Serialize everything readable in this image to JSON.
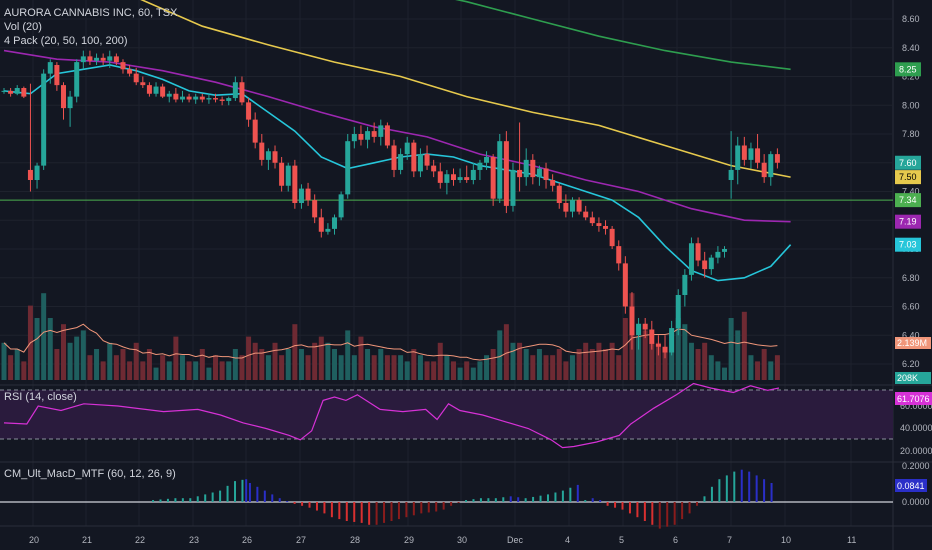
{
  "main_legend": {
    "title": "AURORA CANNABIS INC, 60, TSX",
    "volume": "Vol (20)",
    "ma_pack": "4 Pack (20, 50, 100, 200)"
  },
  "rsi_legend": "RSI (14, close)",
  "macd_legend": "CM_Ult_MacD_MTF (60, 12, 26, 9)",
  "colors": {
    "background": "#131722",
    "up": "#26a69a",
    "down": "#ef5350",
    "ma20": "#26c6da",
    "ma50": "#9c27b0",
    "ma100": "#e6c94d",
    "ma200": "#2e9e4f",
    "hline": "#4caf50",
    "rsi": "#d631d6",
    "macd_up_strong": "#26a69a",
    "macd_up_weak": "#2a2fc8",
    "macd_down_strong": "#d93030",
    "macd_down_weak": "#8a1c1c"
  },
  "price_axis": {
    "ticks": [
      "8.60",
      "8.40",
      "8.20",
      "8.00",
      "7.80",
      "7.60",
      "7.40",
      "7.20",
      "7.00",
      "6.80",
      "6.60",
      "6.40",
      "6.20"
    ],
    "tags": [
      {
        "label": "8.25",
        "color": "#2e9e4f",
        "value": 8.25
      },
      {
        "label": "7.60",
        "color": "#26a69a",
        "value": 7.6
      },
      {
        "label": "7.50",
        "color": "#e6c94d",
        "value": 7.5
      },
      {
        "label": "7.34",
        "color": "#4caf50",
        "value": 7.34
      },
      {
        "label": "7.19",
        "color": "#9c27b0",
        "value": 7.19
      },
      {
        "label": "7.03",
        "color": "#26c6da",
        "value": 7.03
      }
    ],
    "volume_tags": [
      {
        "label": "2.139M",
        "color": "#f0967a"
      },
      {
        "label": "208K",
        "color": "#26a69a"
      }
    ]
  },
  "rsi_axis": {
    "ticks": [
      "60.0000",
      "40.0000",
      "20.0000"
    ],
    "tag": "61.7076"
  },
  "macd_axis": {
    "ticks": [
      "0.2000",
      "0.0000"
    ],
    "tag": "0.0841"
  },
  "time_axis": [
    "20",
    "21",
    "22",
    "23",
    "26",
    "27",
    "28",
    "29",
    "30",
    "Dec",
    "4",
    "5",
    "6",
    "7",
    "10",
    "11"
  ],
  "chart_data": {
    "type": "candlestick",
    "hline": 7.34,
    "candles": [
      [
        8.1,
        8.12,
        8.08,
        8.1
      ],
      [
        8.1,
        8.12,
        8.06,
        8.08
      ],
      [
        8.08,
        8.14,
        8.07,
        8.12
      ],
      [
        8.12,
        8.13,
        8.05,
        8.06
      ],
      [
        7.55,
        8.15,
        7.4,
        7.48
      ],
      [
        7.48,
        7.6,
        7.42,
        7.58
      ],
      [
        7.58,
        8.25,
        7.55,
        8.22
      ],
      [
        8.22,
        8.32,
        8.15,
        8.3
      ],
      [
        8.28,
        8.3,
        8.1,
        8.14
      ],
      [
        8.14,
        8.16,
        7.9,
        7.98
      ],
      [
        7.98,
        8.1,
        7.85,
        8.06
      ],
      [
        8.06,
        8.32,
        8.02,
        8.3
      ],
      [
        8.3,
        8.38,
        8.25,
        8.34
      ],
      [
        8.34,
        8.38,
        8.28,
        8.31
      ],
      [
        8.31,
        8.36,
        8.28,
        8.33
      ],
      [
        8.33,
        8.36,
        8.28,
        8.31
      ],
      [
        8.31,
        8.38,
        8.26,
        8.34
      ],
      [
        8.34,
        8.36,
        8.28,
        8.3
      ],
      [
        8.3,
        8.32,
        8.22,
        8.25
      ],
      [
        8.25,
        8.28,
        8.2,
        8.22
      ],
      [
        8.22,
        8.26,
        8.14,
        8.16
      ],
      [
        8.16,
        8.2,
        8.12,
        8.14
      ],
      [
        8.14,
        8.16,
        8.06,
        8.08
      ],
      [
        8.08,
        8.16,
        8.06,
        8.13
      ],
      [
        8.13,
        8.15,
        8.05,
        8.06
      ],
      [
        8.06,
        8.1,
        8.02,
        8.08
      ],
      [
        8.08,
        8.12,
        8.02,
        8.04
      ],
      [
        8.04,
        8.1,
        8.02,
        8.06
      ],
      [
        8.06,
        8.08,
        8.02,
        8.04
      ],
      [
        8.04,
        8.08,
        8.01,
        8.06
      ],
      [
        8.06,
        8.08,
        8.02,
        8.04
      ],
      [
        8.04,
        8.08,
        8.01,
        8.05
      ],
      [
        8.05,
        8.08,
        8.02,
        8.04
      ],
      [
        8.04,
        8.06,
        8.0,
        8.03
      ],
      [
        8.03,
        8.06,
        8.0,
        8.05
      ],
      [
        8.05,
        8.2,
        8.03,
        8.16
      ],
      [
        8.16,
        8.2,
        8.0,
        8.02
      ],
      [
        8.02,
        8.05,
        7.85,
        7.9
      ],
      [
        7.9,
        7.95,
        7.7,
        7.74
      ],
      [
        7.74,
        7.8,
        7.58,
        7.62
      ],
      [
        7.62,
        7.7,
        7.55,
        7.68
      ],
      [
        7.68,
        7.72,
        7.56,
        7.6
      ],
      [
        7.6,
        7.64,
        7.4,
        7.44
      ],
      [
        7.44,
        7.6,
        7.4,
        7.58
      ],
      [
        7.58,
        7.62,
        7.28,
        7.32
      ],
      [
        7.32,
        7.45,
        7.28,
        7.42
      ],
      [
        7.42,
        7.46,
        7.3,
        7.34
      ],
      [
        7.34,
        7.38,
        7.18,
        7.22
      ],
      [
        7.22,
        7.28,
        7.08,
        7.12
      ],
      [
        7.12,
        7.18,
        7.1,
        7.14
      ],
      [
        7.14,
        7.24,
        7.1,
        7.22
      ],
      [
        7.22,
        7.4,
        7.2,
        7.38
      ],
      [
        7.38,
        7.8,
        7.35,
        7.75
      ],
      [
        7.75,
        7.85,
        7.7,
        7.8
      ],
      [
        7.8,
        7.86,
        7.72,
        7.76
      ],
      [
        7.76,
        7.85,
        7.7,
        7.82
      ],
      [
        7.82,
        7.88,
        7.74,
        7.78
      ],
      [
        7.78,
        7.9,
        7.72,
        7.86
      ],
      [
        7.86,
        7.88,
        7.7,
        7.72
      ],
      [
        7.72,
        7.76,
        7.5,
        7.55
      ],
      [
        7.55,
        7.7,
        7.52,
        7.66
      ],
      [
        7.66,
        7.78,
        7.62,
        7.74
      ],
      [
        7.74,
        7.76,
        7.5,
        7.54
      ],
      [
        7.54,
        7.7,
        7.5,
        7.66
      ],
      [
        7.66,
        7.72,
        7.55,
        7.58
      ],
      [
        7.58,
        7.62,
        7.5,
        7.54
      ],
      [
        7.54,
        7.6,
        7.42,
        7.46
      ],
      [
        7.46,
        7.55,
        7.38,
        7.52
      ],
      [
        7.52,
        7.56,
        7.44,
        7.48
      ],
      [
        7.48,
        7.56,
        7.46,
        7.5
      ],
      [
        7.5,
        7.58,
        7.46,
        7.48
      ],
      [
        7.48,
        7.6,
        7.45,
        7.55
      ],
      [
        7.55,
        7.62,
        7.48,
        7.6
      ],
      [
        7.6,
        7.68,
        7.55,
        7.64
      ],
      [
        7.64,
        7.66,
        7.3,
        7.35
      ],
      [
        7.35,
        7.8,
        7.32,
        7.75
      ],
      [
        7.75,
        7.82,
        7.25,
        7.3
      ],
      [
        7.3,
        7.6,
        7.26,
        7.55
      ],
      [
        7.55,
        7.88,
        7.4,
        7.5
      ],
      [
        7.5,
        7.7,
        7.44,
        7.62
      ],
      [
        7.62,
        7.66,
        7.45,
        7.5
      ],
      [
        7.5,
        7.58,
        7.44,
        7.56
      ],
      [
        7.56,
        7.6,
        7.42,
        7.48
      ],
      [
        7.48,
        7.52,
        7.4,
        7.44
      ],
      [
        7.44,
        7.46,
        7.28,
        7.32
      ],
      [
        7.32,
        7.38,
        7.22,
        7.26
      ],
      [
        7.26,
        7.36,
        7.22,
        7.34
      ],
      [
        7.34,
        7.36,
        7.24,
        7.26
      ],
      [
        7.26,
        7.3,
        7.2,
        7.22
      ],
      [
        7.22,
        7.26,
        7.16,
        7.18
      ],
      [
        7.18,
        7.22,
        7.12,
        7.16
      ],
      [
        7.16,
        7.2,
        7.1,
        7.14
      ],
      [
        7.14,
        7.16,
        7.0,
        7.02
      ],
      [
        7.02,
        7.06,
        6.85,
        6.9
      ],
      [
        6.9,
        6.95,
        6.55,
        6.6
      ],
      [
        6.6,
        6.7,
        6.3,
        6.4
      ],
      [
        6.4,
        6.52,
        6.3,
        6.48
      ],
      [
        6.48,
        6.52,
        6.38,
        6.44
      ],
      [
        6.44,
        6.5,
        6.3,
        6.34
      ],
      [
        6.34,
        6.4,
        6.26,
        6.32
      ],
      [
        6.32,
        6.4,
        6.24,
        6.28
      ],
      [
        6.28,
        6.5,
        6.26,
        6.45
      ],
      [
        6.45,
        6.72,
        6.4,
        6.68
      ],
      [
        6.68,
        6.86,
        6.6,
        6.82
      ],
      [
        6.82,
        7.08,
        6.78,
        7.04
      ],
      [
        7.04,
        7.08,
        6.88,
        6.92
      ],
      [
        6.92,
        6.98,
        6.8,
        6.86
      ],
      [
        6.86,
        6.96,
        6.82,
        6.94
      ],
      [
        6.94,
        7.02,
        6.9,
        6.98
      ],
      [
        6.98,
        7.02,
        6.94,
        7.0
      ],
      [
        7.48,
        7.82,
        7.35,
        7.55
      ],
      [
        7.55,
        7.78,
        7.45,
        7.72
      ],
      [
        7.72,
        7.78,
        7.58,
        7.62
      ],
      [
        7.62,
        7.74,
        7.56,
        7.7
      ],
      [
        7.7,
        7.8,
        7.56,
        7.6
      ],
      [
        7.6,
        7.66,
        7.46,
        7.5
      ],
      [
        7.5,
        7.68,
        7.44,
        7.66
      ],
      [
        7.66,
        7.7,
        7.56,
        7.6
      ]
    ],
    "ma20": [
      [
        0,
        8.1
      ],
      [
        4,
        8.08
      ],
      [
        8,
        8.22
      ],
      [
        12,
        8.25
      ],
      [
        16,
        8.28
      ],
      [
        20,
        8.24
      ],
      [
        24,
        8.18
      ],
      [
        28,
        8.1
      ],
      [
        32,
        8.07
      ],
      [
        36,
        8.08
      ],
      [
        40,
        7.95
      ],
      [
        44,
        7.82
      ],
      [
        48,
        7.64
      ],
      [
        52,
        7.56
      ],
      [
        56,
        7.6
      ],
      [
        60,
        7.64
      ],
      [
        64,
        7.66
      ],
      [
        68,
        7.64
      ],
      [
        72,
        7.58
      ],
      [
        76,
        7.55
      ],
      [
        80,
        7.52
      ],
      [
        84,
        7.46
      ],
      [
        88,
        7.4
      ],
      [
        92,
        7.34
      ],
      [
        96,
        7.22
      ],
      [
        100,
        7.02
      ],
      [
        104,
        6.85
      ],
      [
        108,
        6.78
      ],
      [
        112,
        6.8
      ],
      [
        116,
        6.88
      ],
      [
        119,
        7.03
      ]
    ],
    "ma50": [
      [
        0,
        8.38
      ],
      [
        8,
        8.32
      ],
      [
        16,
        8.3
      ],
      [
        24,
        8.24
      ],
      [
        32,
        8.16
      ],
      [
        40,
        8.06
      ],
      [
        48,
        7.95
      ],
      [
        56,
        7.85
      ],
      [
        64,
        7.78
      ],
      [
        72,
        7.66
      ],
      [
        80,
        7.58
      ],
      [
        88,
        7.48
      ],
      [
        96,
        7.4
      ],
      [
        104,
        7.28
      ],
      [
        112,
        7.2
      ],
      [
        119,
        7.19
      ]
    ],
    "ma100": [
      [
        10,
        8.9
      ],
      [
        20,
        8.75
      ],
      [
        30,
        8.55
      ],
      [
        40,
        8.42
      ],
      [
        50,
        8.3
      ],
      [
        60,
        8.2
      ],
      [
        70,
        8.06
      ],
      [
        80,
        7.95
      ],
      [
        90,
        7.86
      ],
      [
        100,
        7.72
      ],
      [
        110,
        7.58
      ],
      [
        119,
        7.5
      ]
    ],
    "ma200": [
      [
        50,
        8.9
      ],
      [
        60,
        8.82
      ],
      [
        70,
        8.72
      ],
      [
        80,
        8.6
      ],
      [
        90,
        8.48
      ],
      [
        100,
        8.38
      ],
      [
        110,
        8.3
      ],
      [
        119,
        8.25
      ]
    ],
    "volume": [
      0.6,
      0.4,
      0.5,
      0.3,
      1.2,
      1.0,
      1.4,
      1.0,
      0.5,
      0.9,
      0.6,
      0.7,
      0.8,
      0.4,
      0.5,
      0.3,
      0.6,
      0.4,
      0.5,
      0.3,
      0.6,
      0.3,
      0.5,
      0.2,
      0.4,
      0.3,
      0.7,
      0.4,
      0.3,
      0.3,
      0.5,
      0.2,
      0.4,
      0.3,
      0.3,
      0.5,
      0.4,
      0.7,
      0.6,
      0.5,
      0.4,
      0.6,
      0.4,
      0.5,
      0.9,
      0.5,
      0.4,
      0.6,
      0.7,
      0.6,
      0.5,
      0.4,
      0.8,
      0.4,
      0.7,
      0.5,
      0.4,
      0.5,
      0.4,
      0.4,
      0.4,
      0.3,
      0.5,
      0.4,
      0.3,
      0.3,
      0.6,
      0.4,
      0.3,
      0.2,
      0.3,
      0.2,
      0.3,
      0.4,
      0.5,
      0.8,
      0.9,
      0.6,
      0.6,
      0.5,
      0.4,
      0.5,
      0.4,
      0.4,
      0.5,
      0.3,
      0.4,
      0.5,
      0.6,
      0.5,
      0.6,
      0.5,
      0.6,
      0.4,
      1.0,
      1.4,
      0.7,
      0.8,
      0.6,
      0.6,
      0.5,
      0.8,
      1.0,
      0.9,
      0.6,
      0.5,
      0.6,
      0.4,
      0.3,
      0.2,
      1.0,
      0.8,
      1.1,
      0.4,
      0.3,
      0.5,
      0.3,
      0.4
    ],
    "rsi": [
      [
        0,
        45
      ],
      [
        4,
        44
      ],
      [
        6,
        60
      ],
      [
        10,
        56
      ],
      [
        14,
        62
      ],
      [
        20,
        60
      ],
      [
        28,
        55
      ],
      [
        34,
        57
      ],
      [
        38,
        52
      ],
      [
        42,
        45
      ],
      [
        46,
        40
      ],
      [
        50,
        34
      ],
      [
        52,
        30
      ],
      [
        54,
        38
      ],
      [
        56,
        65
      ],
      [
        58,
        68
      ],
      [
        60,
        65
      ],
      [
        62,
        70
      ],
      [
        66,
        57
      ],
      [
        70,
        55
      ],
      [
        74,
        57
      ],
      [
        76,
        48
      ],
      [
        78,
        62
      ],
      [
        80,
        56
      ],
      [
        84,
        52
      ],
      [
        88,
        46
      ],
      [
        92,
        40
      ],
      [
        96,
        30
      ],
      [
        98,
        23
      ],
      [
        100,
        24
      ],
      [
        104,
        28
      ],
      [
        108,
        34
      ],
      [
        110,
        44
      ],
      [
        114,
        58
      ],
      [
        118,
        70
      ],
      [
        121,
        80
      ],
      [
        124,
        76
      ],
      [
        128,
        72
      ],
      [
        131,
        78
      ],
      [
        134,
        74
      ],
      [
        136,
        76
      ]
    ],
    "macd": [
      [
        40,
        0.01
      ],
      [
        46,
        0.02
      ],
      [
        50,
        0.02
      ],
      [
        54,
        0.04
      ],
      [
        58,
        0.06
      ],
      [
        62,
        0.11
      ],
      [
        65,
        0.12
      ],
      [
        66,
        0.1
      ],
      [
        70,
        0.06
      ],
      [
        74,
        0.02
      ],
      [
        78,
        -0.01
      ],
      [
        82,
        -0.03
      ],
      [
        86,
        -0.06
      ],
      [
        88,
        -0.08
      ],
      [
        92,
        -0.1
      ],
      [
        96,
        -0.11
      ],
      [
        98,
        -0.12
      ],
      [
        100,
        -0.12
      ],
      [
        104,
        -0.1
      ],
      [
        108,
        -0.08
      ],
      [
        112,
        -0.06
      ],
      [
        116,
        -0.05
      ],
      [
        118,
        -0.04
      ],
      [
        120,
        -0.02
      ],
      [
        124,
        0.01
      ],
      [
        128,
        0.02
      ],
      [
        132,
        0.02
      ],
      [
        136,
        0.03
      ],
      [
        140,
        0.02
      ],
      [
        146,
        0.04
      ],
      [
        150,
        0.06
      ],
      [
        154,
        0.09
      ],
      [
        156,
        0.01
      ],
      [
        158,
        0.02
      ],
      [
        160,
        0.01
      ],
      [
        162,
        -0.02
      ],
      [
        166,
        -0.04
      ],
      [
        170,
        -0.08
      ],
      [
        174,
        -0.12
      ],
      [
        176,
        -0.14
      ],
      [
        180,
        -0.12
      ],
      [
        184,
        -0.06
      ],
      [
        186,
        -0.02
      ],
      [
        188,
        0.03
      ],
      [
        190,
        0.08
      ],
      [
        192,
        0.12
      ],
      [
        194,
        0.14
      ],
      [
        196,
        0.16
      ],
      [
        198,
        0.17
      ],
      [
        200,
        0.16
      ],
      [
        202,
        0.14
      ],
      [
        204,
        0.12
      ],
      [
        206,
        0.1
      ],
      [
        208,
        0.08
      ]
    ]
  }
}
